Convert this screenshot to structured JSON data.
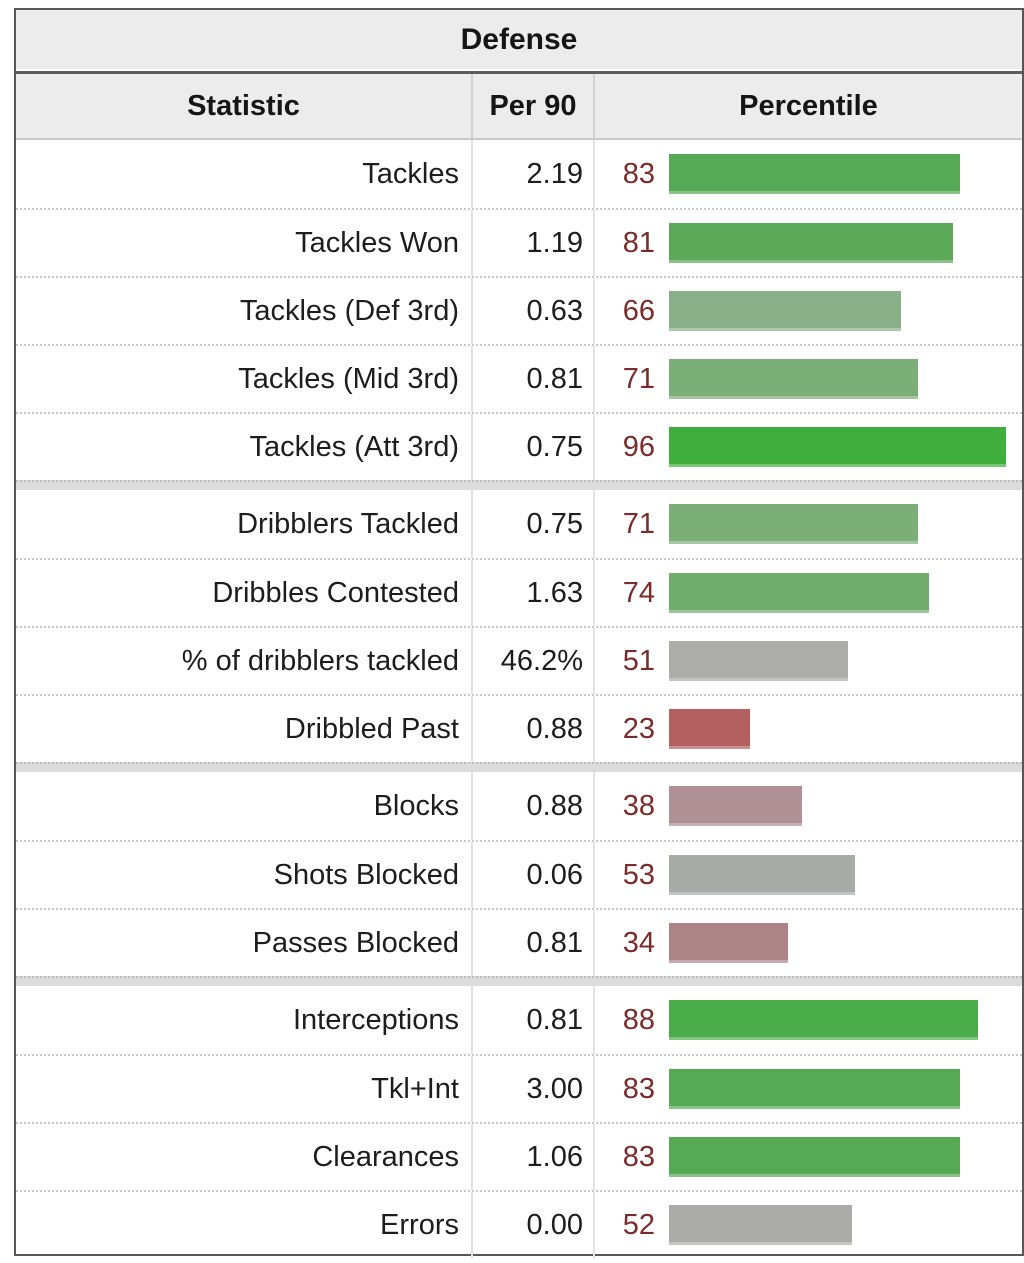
{
  "table": {
    "title": "Defense",
    "columns": [
      "Statistic",
      "Per 90",
      "Percentile"
    ],
    "colors": {
      "header_bg": "#ececec",
      "outer_border": "#575757",
      "percentile_number": "#7b2b2c",
      "row_text": "#1d1d1d",
      "group_separator_bg": "#dcdcdc"
    },
    "groups": [
      {
        "rows": [
          {
            "stat": "Tackles",
            "per90": "2.19",
            "percentile": 83,
            "bar_color": "#57aa55"
          },
          {
            "stat": "Tackles Won",
            "per90": "1.19",
            "percentile": 81,
            "bar_color": "#5caa59"
          },
          {
            "stat": "Tackles (Def 3rd)",
            "per90": "0.63",
            "percentile": 66,
            "bar_color": "#8ab089"
          },
          {
            "stat": "Tackles (Mid 3rd)",
            "per90": "0.81",
            "percentile": 71,
            "bar_color": "#7cae78"
          },
          {
            "stat": "Tackles (Att 3rd)",
            "per90": "0.75",
            "percentile": 96,
            "bar_color": "#3fae3c"
          }
        ]
      },
      {
        "rows": [
          {
            "stat": "Dribblers Tackled",
            "per90": "0.75",
            "percentile": 71,
            "bar_color": "#7cae78"
          },
          {
            "stat": "Dribbles Contested",
            "per90": "1.63",
            "percentile": 74,
            "bar_color": "#70ad6c"
          },
          {
            "stat": "% of dribblers tackled",
            "per90": "46.2%",
            "percentile": 51,
            "bar_color": "#adaeab"
          },
          {
            "stat": "Dribbled Past",
            "per90": "0.88",
            "percentile": 23,
            "bar_color": "#b26060"
          }
        ]
      },
      {
        "rows": [
          {
            "stat": "Blocks",
            "per90": "0.88",
            "percentile": 38,
            "bar_color": "#ae9095"
          },
          {
            "stat": "Shots Blocked",
            "per90": "0.06",
            "percentile": 53,
            "bar_color": "#a7aca7"
          },
          {
            "stat": "Passes Blocked",
            "per90": "0.81",
            "percentile": 34,
            "bar_color": "#ac8488"
          }
        ]
      },
      {
        "rows": [
          {
            "stat": "Interceptions",
            "per90": "0.81",
            "percentile": 88,
            "bar_color": "#4bad49"
          },
          {
            "stat": "Tkl+Int",
            "per90": "3.00",
            "percentile": 83,
            "bar_color": "#57aa55"
          },
          {
            "stat": "Clearances",
            "per90": "1.06",
            "percentile": 83,
            "bar_color": "#57aa55"
          },
          {
            "stat": "Errors",
            "per90": "0.00",
            "percentile": 52,
            "bar_color": "#abacaa"
          }
        ]
      }
    ]
  },
  "chart_data": {
    "type": "bar",
    "orientation": "horizontal",
    "title": "Defense",
    "xlabel": "Percentile",
    "ylabel": "Statistic",
    "value_range": [
      0,
      100
    ],
    "grid": false,
    "legend": "none",
    "categories": [
      "Tackles",
      "Tackles Won",
      "Tackles (Def 3rd)",
      "Tackles (Mid 3rd)",
      "Tackles (Att 3rd)",
      "Dribblers Tackled",
      "Dribbles Contested",
      "% of dribblers tackled",
      "Dribbled Past",
      "Blocks",
      "Shots Blocked",
      "Passes Blocked",
      "Interceptions",
      "Tkl+Int",
      "Clearances",
      "Errors"
    ],
    "series": [
      {
        "name": "Per 90",
        "values": [
          "2.19",
          "1.19",
          "0.63",
          "0.81",
          "0.75",
          "0.75",
          "1.63",
          "46.2%",
          "0.88",
          "0.88",
          "0.06",
          "0.81",
          "0.81",
          "3.00",
          "1.06",
          "0.00"
        ]
      },
      {
        "name": "Percentile",
        "values": [
          83,
          81,
          66,
          71,
          96,
          71,
          74,
          51,
          23,
          38,
          53,
          34,
          88,
          83,
          83,
          52
        ]
      }
    ],
    "group_breaks_after_index": [
      4,
      8,
      11
    ]
  }
}
